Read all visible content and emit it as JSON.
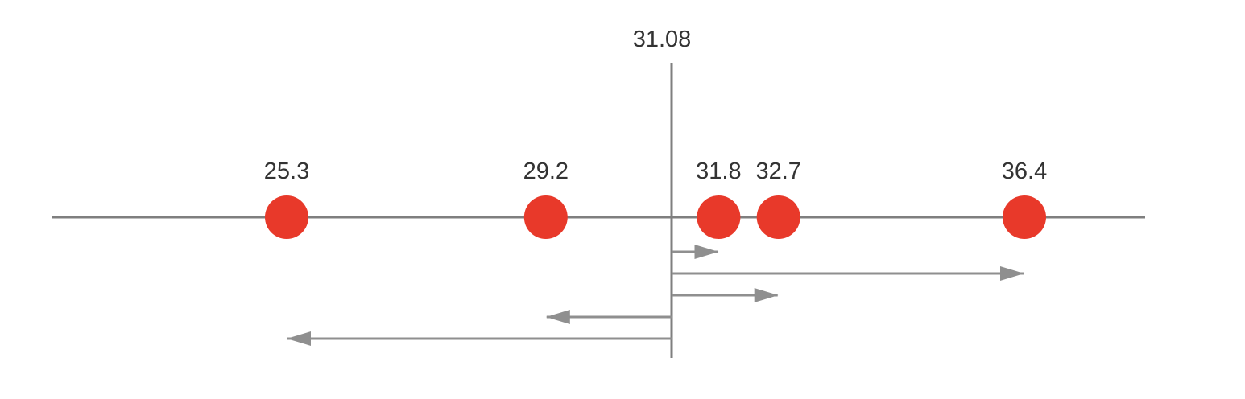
{
  "diagram": {
    "center": {
      "value": 31.08,
      "label": "31.08"
    },
    "points": [
      {
        "value": 25.3,
        "label": "25.3"
      },
      {
        "value": 29.2,
        "label": "29.2"
      },
      {
        "value": 31.8,
        "label": "31.8"
      },
      {
        "value": 32.7,
        "label": "32.7"
      },
      {
        "value": 36.4,
        "label": "36.4"
      }
    ],
    "deviation_order": [
      31.8,
      36.4,
      32.7,
      29.2,
      25.3
    ],
    "colors": {
      "point": "#E8392A",
      "axis": "#7f7f7f",
      "arrow": "#8f8f8f",
      "text": "#333333"
    }
  }
}
